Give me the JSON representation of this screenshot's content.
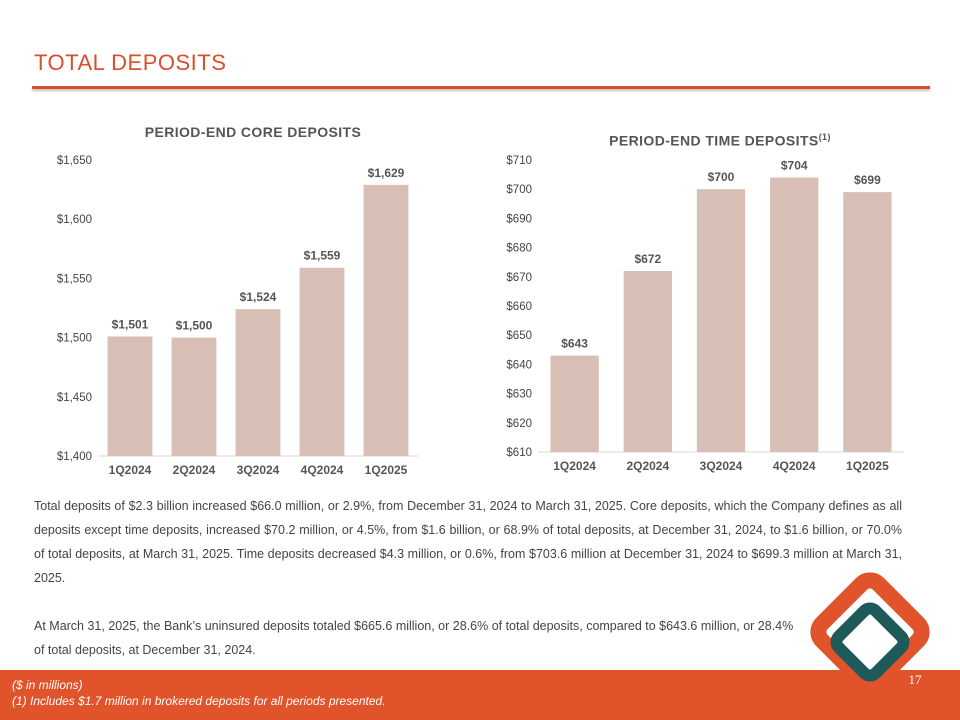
{
  "page": {
    "title": "TOTAL DEPOSITS",
    "page_number": "17"
  },
  "colors": {
    "accent": "#d94f2b",
    "bar": "#d8bfb6",
    "footer": "#e0532b",
    "logo_teal": "#1f5a5a"
  },
  "chart_data": [
    {
      "type": "bar",
      "title": "PERIOD-END CORE DEPOSITS",
      "title_superscript": "",
      "categories": [
        "1Q2024",
        "2Q2024",
        "3Q2024",
        "4Q2024",
        "1Q2025"
      ],
      "values": [
        1501,
        1500,
        1524,
        1559,
        1629
      ],
      "data_labels": [
        "$1,501",
        "$1,500",
        "$1,524",
        "$1,559",
        "$1,629"
      ],
      "ylim": [
        1400,
        1650
      ],
      "yticks": [
        1400,
        1450,
        1500,
        1550,
        1600,
        1650
      ],
      "ytick_labels": [
        "$1,400",
        "$1,450",
        "$1,500",
        "$1,550",
        "$1,600",
        "$1,650"
      ],
      "xlabel": "",
      "ylabel": "",
      "grid": false
    },
    {
      "type": "bar",
      "title": "PERIOD-END TIME DEPOSITS",
      "title_superscript": "(1)",
      "categories": [
        "1Q2024",
        "2Q2024",
        "3Q2024",
        "4Q2024",
        "1Q2025"
      ],
      "values": [
        643,
        672,
        700,
        704,
        699
      ],
      "data_labels": [
        "$643",
        "$672",
        "$700",
        "$704",
        "$699"
      ],
      "ylim": [
        610,
        710
      ],
      "yticks": [
        610,
        620,
        630,
        640,
        650,
        660,
        670,
        680,
        690,
        700,
        710
      ],
      "ytick_labels": [
        "$610",
        "$620",
        "$630",
        "$640",
        "$650",
        "$660",
        "$670",
        "$680",
        "$690",
        "$700",
        "$710"
      ],
      "xlabel": "",
      "ylabel": "",
      "grid": false
    }
  ],
  "text": {
    "paragraph1": "Total deposits of $2.3 billion increased $66.0 million, or 2.9%, from December 31, 2024 to March 31, 2025. Core deposits, which the Company defines as all deposits except time deposits, increased $70.2 million, or 4.5%, from $1.6 billion, or 68.9% of total deposits, at December 31, 2024, to $1.6 billion, or 70.0% of total deposits, at March 31, 2025. Time deposits decreased $4.3 million, or 0.6%, from $703.6 million at December 31, 2024 to $699.3 million at March 31, 2025.",
    "paragraph2": "At March 31, 2025, the Bank’s uninsured deposits totaled $665.6 million, or 28.6% of total deposits, compared to $643.6 million, or 28.4% of total deposits, at December 31, 2024."
  },
  "footnotes": {
    "units": "($ in millions)",
    "note1": "(1) Includes $1.7 million in brokered deposits for all periods presented."
  }
}
